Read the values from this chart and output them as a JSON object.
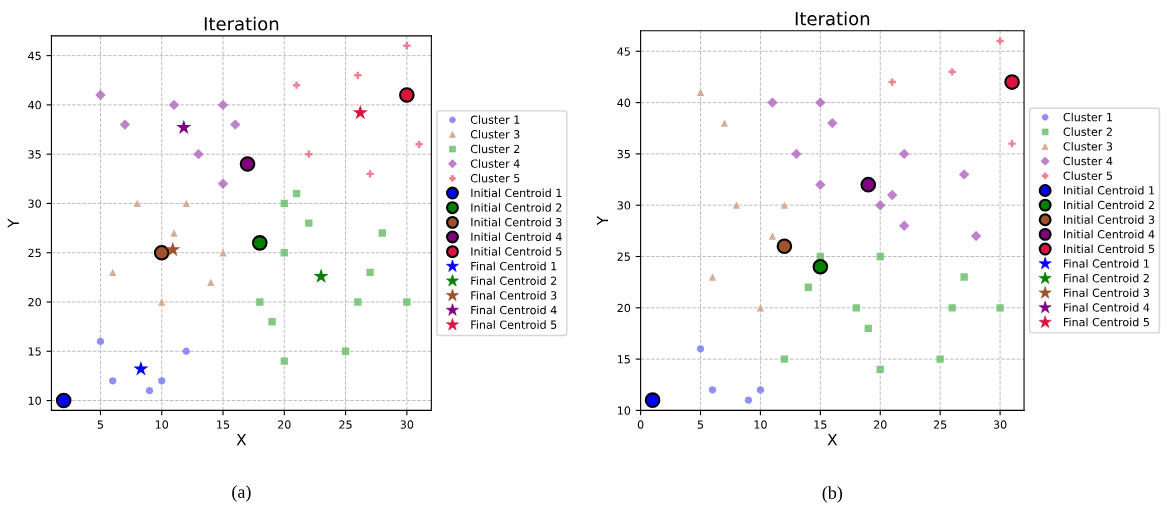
{
  "chart_data": [
    {
      "type": "scatter",
      "title": "Iteration",
      "xlabel": "X",
      "ylabel": "Y",
      "xlim": [
        1,
        32
      ],
      "ylim": [
        9,
        47
      ],
      "xticks": [
        5,
        10,
        15,
        20,
        25,
        30
      ],
      "yticks": [
        10,
        15,
        20,
        25,
        30,
        35,
        40,
        45
      ],
      "grid": true,
      "legend": "right",
      "annotations": [
        "(a)"
      ],
      "series": [
        {
          "name": "Cluster 1",
          "marker": "circle",
          "color": "#7b7bf5",
          "x": [
            5,
            6,
            9,
            10,
            12
          ],
          "values": [
            16,
            12,
            11,
            12,
            15
          ]
        },
        {
          "name": "Cluster 3",
          "marker": "triangle",
          "color": "#cf9f85",
          "x": [
            6,
            8,
            10,
            11,
            12,
            14,
            15
          ],
          "values": [
            23,
            30,
            20,
            27,
            30,
            22,
            25
          ]
        },
        {
          "name": "Cluster 2",
          "marker": "square",
          "color": "#6cbf6c",
          "x": [
            18,
            19,
            20,
            20,
            20,
            21,
            22,
            25,
            26,
            27,
            28,
            30
          ],
          "values": [
            20,
            18,
            30,
            25,
            14,
            31,
            28,
            15,
            20,
            23,
            27,
            20
          ]
        },
        {
          "name": "Cluster 4",
          "marker": "diamond",
          "color": "#b36bc2",
          "x": [
            5,
            7,
            11,
            13,
            15,
            15,
            16
          ],
          "values": [
            41,
            38,
            40,
            35,
            40,
            32,
            38
          ]
        },
        {
          "name": "Cluster 5",
          "marker": "cross",
          "color": "#ee6a82",
          "x": [
            21,
            22,
            26,
            27,
            30,
            31
          ],
          "values": [
            42,
            35,
            43,
            33,
            46,
            36
          ]
        },
        {
          "name": "Initial Centroid 1",
          "marker": "circle",
          "color": "#0000ff",
          "x": [
            2
          ],
          "values": [
            10
          ]
        },
        {
          "name": "Initial Centroid 2",
          "marker": "circle",
          "color": "#008000",
          "x": [
            18
          ],
          "values": [
            26
          ]
        },
        {
          "name": "Initial Centroid 3",
          "marker": "circle",
          "color": "#a0522d",
          "x": [
            10
          ],
          "values": [
            25
          ]
        },
        {
          "name": "Initial Centroid 4",
          "marker": "circle",
          "color": "#800080",
          "x": [
            17
          ],
          "values": [
            34
          ]
        },
        {
          "name": "Initial Centroid 5",
          "marker": "circle",
          "color": "#dc143c",
          "x": [
            30
          ],
          "values": [
            41
          ]
        },
        {
          "name": "Final Centroid 1",
          "marker": "star",
          "color": "#0000ff",
          "x": [
            8.3
          ],
          "values": [
            13.2
          ]
        },
        {
          "name": "Final Centroid 2",
          "marker": "star",
          "color": "#008000",
          "x": [
            23
          ],
          "values": [
            22.6
          ]
        },
        {
          "name": "Final Centroid 3",
          "marker": "star",
          "color": "#a0522d",
          "x": [
            10.9
          ],
          "values": [
            25.3
          ]
        },
        {
          "name": "Final Centroid 4",
          "marker": "star",
          "color": "#800080",
          "x": [
            11.8
          ],
          "values": [
            37.7
          ]
        },
        {
          "name": "Final Centroid 5",
          "marker": "star",
          "color": "#dc143c",
          "x": [
            26.2
          ],
          "values": [
            39.2
          ]
        }
      ]
    },
    {
      "type": "scatter",
      "title": "Iteration",
      "xlabel": "X",
      "ylabel": "Y",
      "xlim": [
        0,
        32
      ],
      "ylim": [
        10,
        47
      ],
      "xticks": [
        0,
        5,
        10,
        15,
        20,
        25,
        30
      ],
      "yticks": [
        10,
        15,
        20,
        25,
        30,
        35,
        40,
        45
      ],
      "grid": true,
      "legend": "right",
      "annotations": [
        "(b)"
      ],
      "series": [
        {
          "name": "Cluster 1",
          "marker": "circle",
          "color": "#7b7bf5",
          "x": [
            5,
            6,
            9,
            10
          ],
          "values": [
            16,
            12,
            11,
            12
          ]
        },
        {
          "name": "Cluster 2",
          "marker": "square",
          "color": "#6cbf6c",
          "x": [
            12,
            14,
            15,
            18,
            19,
            20,
            20,
            25,
            26,
            27,
            30
          ],
          "values": [
            15,
            22,
            25,
            20,
            18,
            25,
            14,
            15,
            20,
            23,
            20
          ]
        },
        {
          "name": "Cluster 3",
          "marker": "triangle",
          "color": "#cf9f85",
          "x": [
            5,
            7,
            8,
            11,
            12,
            6,
            10
          ],
          "values": [
            41,
            38,
            30,
            27,
            30,
            23,
            20
          ]
        },
        {
          "name": "Cluster 4",
          "marker": "diamond",
          "color": "#b36bc2",
          "x": [
            11,
            15,
            16,
            13,
            15,
            22,
            21,
            20,
            22,
            27,
            28
          ],
          "values": [
            40,
            40,
            38,
            35,
            32,
            35,
            31,
            30,
            28,
            33,
            27
          ]
        },
        {
          "name": "Cluster 5",
          "marker": "cross",
          "color": "#ee6a82",
          "x": [
            21,
            26,
            30,
            31
          ],
          "values": [
            42,
            43,
            46,
            36
          ]
        },
        {
          "name": "Initial Centroid 1",
          "marker": "circle",
          "color": "#0000ff",
          "x": [
            1
          ],
          "values": [
            11
          ]
        },
        {
          "name": "Initial Centroid 2",
          "marker": "circle",
          "color": "#008000",
          "x": [
            15
          ],
          "values": [
            24
          ]
        },
        {
          "name": "Initial Centroid 3",
          "marker": "circle",
          "color": "#a0522d",
          "x": [
            12
          ],
          "values": [
            26
          ]
        },
        {
          "name": "Initial Centroid 4",
          "marker": "circle",
          "color": "#800080",
          "x": [
            19
          ],
          "values": [
            32
          ]
        },
        {
          "name": "Initial Centroid 5",
          "marker": "circle",
          "color": "#dc143c",
          "x": [
            31
          ],
          "values": [
            42
          ]
        },
        {
          "name": "Final Centroid 1",
          "marker": "star",
          "color": "#0000ff"
        },
        {
          "name": "Final Centroid 2",
          "marker": "star",
          "color": "#008000"
        },
        {
          "name": "Final Centroid 3",
          "marker": "star",
          "color": "#a0522d"
        },
        {
          "name": "Final Centroid 4",
          "marker": "star",
          "color": "#800080"
        },
        {
          "name": "Final Centroid 5",
          "marker": "star",
          "color": "#dc143c"
        }
      ]
    }
  ]
}
